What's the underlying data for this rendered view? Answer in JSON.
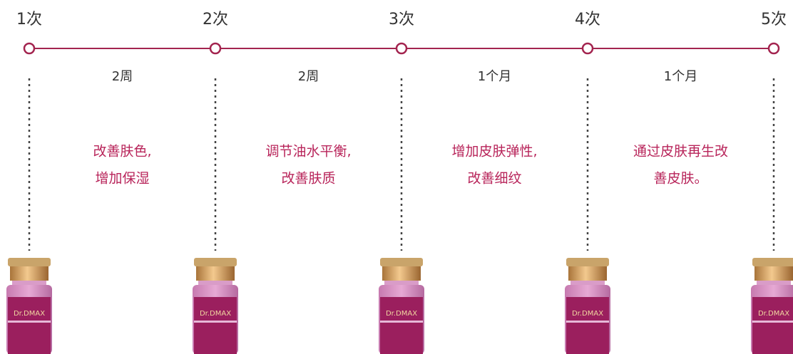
{
  "steps": [
    "1次",
    "2次",
    "3次",
    "4次",
    "5次"
  ],
  "intervals": [
    "2周",
    "2周",
    "1个月",
    "1个月"
  ],
  "descriptions": [
    [
      "改善肤色,",
      "增加保湿"
    ],
    [
      "调节油水平衡,",
      "改善肤质"
    ],
    [
      "增加皮肤弹性,",
      "改善细纹"
    ],
    [
      "通过皮肤再生改",
      "善皮肤。"
    ]
  ],
  "product": "Dr.DMAX"
}
